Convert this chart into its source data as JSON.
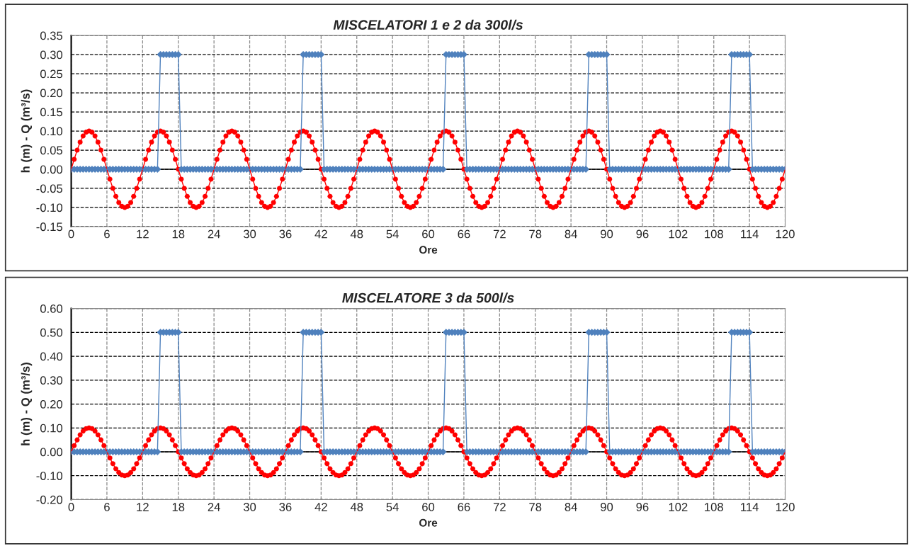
{
  "chart_data": [
    {
      "type": "line",
      "title": "MISCELATORI 1 e 2 da 300l/s",
      "xlabel": "Ore",
      "ylabel": "h (m) - Q (m³/s)",
      "xlim": [
        0,
        120
      ],
      "xticks": [
        0,
        6,
        12,
        18,
        24,
        30,
        36,
        42,
        48,
        54,
        60,
        66,
        72,
        78,
        84,
        90,
        96,
        102,
        108,
        114,
        120
      ],
      "ref_lines": [
        {
          "axis": "y",
          "value": 0,
          "color": "#000000"
        }
      ],
      "ylim": [
        -0.15,
        0.35
      ],
      "yticks": [
        {
          "value": -0.15,
          "label": "-0.15"
        },
        {
          "value": -0.1,
          "label": "-0.10"
        },
        {
          "value": -0.05,
          "label": "-0.05"
        },
        {
          "value": 0,
          "label": "0.00"
        },
        {
          "value": 0.05,
          "label": "0.05"
        },
        {
          "value": 0.1,
          "label": "0.10"
        },
        {
          "value": 0.15,
          "label": "0.15"
        },
        {
          "value": 0.2,
          "label": "0.20"
        },
        {
          "value": 0.25,
          "label": "0.25"
        },
        {
          "value": 0.3,
          "label": "0.30"
        },
        {
          "value": 0.35,
          "label": "0.35"
        }
      ],
      "grid": true,
      "line_style": "solid",
      "x": [
        0,
        0.5,
        1,
        1.5,
        2,
        2.5,
        3,
        3.5,
        4,
        4.5,
        5,
        5.5,
        6,
        6.5,
        7,
        7.5,
        8,
        8.5,
        9,
        9.5,
        10,
        10.5,
        11,
        11.5,
        12,
        12.5,
        13,
        13.5,
        14,
        14.5,
        15,
        15.5,
        16,
        16.5,
        17,
        17.5,
        18,
        18.5,
        19,
        19.5,
        20,
        20.5,
        21,
        21.5,
        22,
        22.5,
        23,
        23.5,
        24,
        24.5,
        25,
        25.5,
        26,
        26.5,
        27,
        27.5,
        28,
        28.5,
        29,
        29.5,
        30,
        30.5,
        31,
        31.5,
        32,
        32.5,
        33,
        33.5,
        34,
        34.5,
        35,
        35.5,
        36,
        36.5,
        37,
        37.5,
        38,
        38.5,
        39,
        39.5,
        40,
        40.5,
        41,
        41.5,
        42,
        42.5,
        43,
        43.5,
        44,
        44.5,
        45,
        45.5,
        46,
        46.5,
        47,
        47.5,
        48,
        48.5,
        49,
        49.5,
        50,
        50.5,
        51,
        51.5,
        52,
        52.5,
        53,
        53.5,
        54,
        54.5,
        55,
        55.5,
        56,
        56.5,
        57,
        57.5,
        58,
        58.5,
        59,
        59.5,
        60,
        60.5,
        61,
        61.5,
        62,
        62.5,
        63,
        63.5,
        64,
        64.5,
        65,
        65.5,
        66,
        66.5,
        67,
        67.5,
        68,
        68.5,
        69,
        69.5,
        70,
        70.5,
        71,
        71.5,
        72,
        72.5,
        73,
        73.5,
        74,
        74.5,
        75,
        75.5,
        76,
        76.5,
        77,
        77.5,
        78,
        78.5,
        79,
        79.5,
        80,
        80.5,
        81,
        81.5,
        82,
        82.5,
        83,
        83.5,
        84,
        84.5,
        85,
        85.5,
        86,
        86.5,
        87,
        87.5,
        88,
        88.5,
        89,
        89.5,
        90,
        90.5,
        91,
        91.5,
        92,
        92.5,
        93,
        93.5,
        94,
        94.5,
        95,
        95.5,
        96,
        96.5,
        97,
        97.5,
        98,
        98.5,
        99,
        99.5,
        100,
        100.5,
        101,
        101.5,
        102,
        102.5,
        103,
        103.5,
        104,
        104.5,
        105,
        105.5,
        106,
        106.5,
        107,
        107.5,
        108,
        108.5,
        109,
        109.5,
        110,
        110.5,
        111,
        111.5,
        112,
        112.5,
        113,
        113.5,
        114,
        114.5,
        115,
        115.5,
        116,
        116.5,
        117,
        117.5,
        118,
        118.5,
        119,
        119.5,
        120
      ],
      "series": [
        {
          "color": "#ff0000",
          "marker": "circle",
          "values": [
            0,
            0.026,
            0.05,
            0.071,
            0.087,
            0.097,
            0.1,
            0.097,
            0.087,
            0.071,
            0.05,
            0.026,
            0,
            -0.026,
            -0.05,
            -0.071,
            -0.087,
            -0.097,
            -0.1,
            -0.097,
            -0.087,
            -0.071,
            -0.05,
            -0.026,
            0,
            0.026,
            0.05,
            0.071,
            0.087,
            0.097,
            0.1,
            0.097,
            0.087,
            0.071,
            0.05,
            0.026,
            0,
            -0.026,
            -0.05,
            -0.071,
            -0.087,
            -0.097,
            -0.1,
            -0.097,
            -0.087,
            -0.071,
            -0.05,
            -0.026,
            0,
            0.026,
            0.05,
            0.071,
            0.087,
            0.097,
            0.1,
            0.097,
            0.087,
            0.071,
            0.05,
            0.026,
            0,
            -0.026,
            -0.05,
            -0.071,
            -0.087,
            -0.097,
            -0.1,
            -0.097,
            -0.087,
            -0.071,
            -0.05,
            -0.026,
            0,
            0.026,
            0.05,
            0.071,
            0.087,
            0.097,
            0.1,
            0.097,
            0.087,
            0.071,
            0.05,
            0.026,
            0,
            -0.026,
            -0.05,
            -0.071,
            -0.087,
            -0.097,
            -0.1,
            -0.097,
            -0.087,
            -0.071,
            -0.05,
            -0.026,
            0,
            0.026,
            0.05,
            0.071,
            0.087,
            0.097,
            0.1,
            0.097,
            0.087,
            0.071,
            0.05,
            0.026,
            0,
            -0.026,
            -0.05,
            -0.071,
            -0.087,
            -0.097,
            -0.1,
            -0.097,
            -0.087,
            -0.071,
            -0.05,
            -0.026,
            0,
            0.026,
            0.05,
            0.071,
            0.087,
            0.097,
            0.1,
            0.097,
            0.087,
            0.071,
            0.05,
            0.026,
            0,
            -0.026,
            -0.05,
            -0.071,
            -0.087,
            -0.097,
            -0.1,
            -0.097,
            -0.087,
            -0.071,
            -0.05,
            -0.026,
            0,
            0.026,
            0.05,
            0.071,
            0.087,
            0.097,
            0.1,
            0.097,
            0.087,
            0.071,
            0.05,
            0.026,
            0,
            -0.026,
            -0.05,
            -0.071,
            -0.087,
            -0.097,
            -0.1,
            -0.097,
            -0.087,
            -0.071,
            -0.05,
            -0.026,
            0,
            0.026,
            0.05,
            0.071,
            0.087,
            0.097,
            0.1,
            0.097,
            0.087,
            0.071,
            0.05,
            0.026,
            0,
            -0.026,
            -0.05,
            -0.071,
            -0.087,
            -0.097,
            -0.1,
            -0.097,
            -0.087,
            -0.071,
            -0.05,
            -0.026,
            0,
            0.026,
            0.05,
            0.071,
            0.087,
            0.097,
            0.1,
            0.097,
            0.087,
            0.071,
            0.05,
            0.026,
            0,
            -0.026,
            -0.05,
            -0.071,
            -0.087,
            -0.097,
            -0.1,
            -0.097,
            -0.087,
            -0.071,
            -0.05,
            -0.026,
            0,
            0.026,
            0.05,
            0.071,
            0.087,
            0.097,
            0.1,
            0.097,
            0.087,
            0.071,
            0.05,
            0.026,
            0,
            -0.026,
            -0.05,
            -0.071,
            -0.087,
            -0.097,
            -0.1,
            -0.097,
            -0.087,
            -0.071,
            -0.05,
            -0.026,
            0
          ]
        },
        {
          "color": "#4f81bd",
          "marker": "diamond",
          "values": [
            0,
            0,
            0,
            0,
            0,
            0,
            0,
            0,
            0,
            0,
            0,
            0,
            0,
            0,
            0,
            0,
            0,
            0,
            0,
            0,
            0,
            0,
            0,
            0,
            0,
            0,
            0,
            0,
            0,
            0,
            0.3,
            0.3,
            0.3,
            0.3,
            0.3,
            0.3,
            0.3,
            0,
            0,
            0,
            0,
            0,
            0,
            0,
            0,
            0,
            0,
            0,
            0,
            0,
            0,
            0,
            0,
            0,
            0,
            0,
            0,
            0,
            0,
            0,
            0,
            0,
            0,
            0,
            0,
            0,
            0,
            0,
            0,
            0,
            0,
            0,
            0,
            0,
            0,
            0,
            0,
            0,
            0.3,
            0.3,
            0.3,
            0.3,
            0.3,
            0.3,
            0.3,
            0,
            0,
            0,
            0,
            0,
            0,
            0,
            0,
            0,
            0,
            0,
            0,
            0,
            0,
            0,
            0,
            0,
            0,
            0,
            0,
            0,
            0,
            0,
            0,
            0,
            0,
            0,
            0,
            0,
            0,
            0,
            0,
            0,
            0,
            0,
            0,
            0,
            0,
            0,
            0,
            0,
            0.3,
            0.3,
            0.3,
            0.3,
            0.3,
            0.3,
            0.3,
            0,
            0,
            0,
            0,
            0,
            0,
            0,
            0,
            0,
            0,
            0,
            0,
            0,
            0,
            0,
            0,
            0,
            0,
            0,
            0,
            0,
            0,
            0,
            0,
            0,
            0,
            0,
            0,
            0,
            0,
            0,
            0,
            0,
            0,
            0,
            0,
            0,
            0,
            0,
            0,
            0,
            0.3,
            0.3,
            0.3,
            0.3,
            0.3,
            0.3,
            0.3,
            0,
            0,
            0,
            0,
            0,
            0,
            0,
            0,
            0,
            0,
            0,
            0,
            0,
            0,
            0,
            0,
            0,
            0,
            0,
            0,
            0,
            0,
            0,
            0,
            0,
            0,
            0,
            0,
            0,
            0,
            0,
            0,
            0,
            0,
            0,
            0,
            0,
            0,
            0,
            0,
            0,
            0.3,
            0.3,
            0.3,
            0.3,
            0.3,
            0.3,
            0.3,
            0,
            0,
            0,
            0,
            0,
            0,
            0,
            0,
            0,
            0,
            0,
            0
          ]
        }
      ]
    },
    {
      "type": "line",
      "title": "MISCELATORE 3 da 500l/s",
      "xlabel": "Ore",
      "ylabel": "h (m) - Q (m³/s)",
      "xlim": [
        0,
        120
      ],
      "xticks": [
        0,
        6,
        12,
        18,
        24,
        30,
        36,
        42,
        48,
        54,
        60,
        66,
        72,
        78,
        84,
        90,
        96,
        102,
        108,
        114,
        120
      ],
      "ref_lines": [
        {
          "axis": "y",
          "value": 0,
          "color": "#000000"
        }
      ],
      "ylim": [
        -0.2,
        0.6
      ],
      "yticks": [
        {
          "value": -0.2,
          "label": "-0.20"
        },
        {
          "value": -0.1,
          "label": "-0.10"
        },
        {
          "value": 0,
          "label": "0.00"
        },
        {
          "value": 0.1,
          "label": "0.10"
        },
        {
          "value": 0.2,
          "label": "0.20"
        },
        {
          "value": 0.3,
          "label": "0.30"
        },
        {
          "value": 0.4,
          "label": "0.40"
        },
        {
          "value": 0.5,
          "label": "0.50"
        },
        {
          "value": 0.6,
          "label": "0.60"
        }
      ],
      "grid": true,
      "line_style": "solid",
      "x": [
        0,
        0.5,
        1,
        1.5,
        2,
        2.5,
        3,
        3.5,
        4,
        4.5,
        5,
        5.5,
        6,
        6.5,
        7,
        7.5,
        8,
        8.5,
        9,
        9.5,
        10,
        10.5,
        11,
        11.5,
        12,
        12.5,
        13,
        13.5,
        14,
        14.5,
        15,
        15.5,
        16,
        16.5,
        17,
        17.5,
        18,
        18.5,
        19,
        19.5,
        20,
        20.5,
        21,
        21.5,
        22,
        22.5,
        23,
        23.5,
        24,
        24.5,
        25,
        25.5,
        26,
        26.5,
        27,
        27.5,
        28,
        28.5,
        29,
        29.5,
        30,
        30.5,
        31,
        31.5,
        32,
        32.5,
        33,
        33.5,
        34,
        34.5,
        35,
        35.5,
        36,
        36.5,
        37,
        37.5,
        38,
        38.5,
        39,
        39.5,
        40,
        40.5,
        41,
        41.5,
        42,
        42.5,
        43,
        43.5,
        44,
        44.5,
        45,
        45.5,
        46,
        46.5,
        47,
        47.5,
        48,
        48.5,
        49,
        49.5,
        50,
        50.5,
        51,
        51.5,
        52,
        52.5,
        53,
        53.5,
        54,
        54.5,
        55,
        55.5,
        56,
        56.5,
        57,
        57.5,
        58,
        58.5,
        59,
        59.5,
        60,
        60.5,
        61,
        61.5,
        62,
        62.5,
        63,
        63.5,
        64,
        64.5,
        65,
        65.5,
        66,
        66.5,
        67,
        67.5,
        68,
        68.5,
        69,
        69.5,
        70,
        70.5,
        71,
        71.5,
        72,
        72.5,
        73,
        73.5,
        74,
        74.5,
        75,
        75.5,
        76,
        76.5,
        77,
        77.5,
        78,
        78.5,
        79,
        79.5,
        80,
        80.5,
        81,
        81.5,
        82,
        82.5,
        83,
        83.5,
        84,
        84.5,
        85,
        85.5,
        86,
        86.5,
        87,
        87.5,
        88,
        88.5,
        89,
        89.5,
        90,
        90.5,
        91,
        91.5,
        92,
        92.5,
        93,
        93.5,
        94,
        94.5,
        95,
        95.5,
        96,
        96.5,
        97,
        97.5,
        98,
        98.5,
        99,
        99.5,
        100,
        100.5,
        101,
        101.5,
        102,
        102.5,
        103,
        103.5,
        104,
        104.5,
        105,
        105.5,
        106,
        106.5,
        107,
        107.5,
        108,
        108.5,
        109,
        109.5,
        110,
        110.5,
        111,
        111.5,
        112,
        112.5,
        113,
        113.5,
        114,
        114.5,
        115,
        115.5,
        116,
        116.5,
        117,
        117.5,
        118,
        118.5,
        119,
        119.5,
        120
      ],
      "series": [
        {
          "color": "#ff0000",
          "marker": "circle",
          "values": [
            0,
            0.026,
            0.05,
            0.071,
            0.087,
            0.097,
            0.1,
            0.097,
            0.087,
            0.071,
            0.05,
            0.026,
            0,
            -0.026,
            -0.05,
            -0.071,
            -0.087,
            -0.097,
            -0.1,
            -0.097,
            -0.087,
            -0.071,
            -0.05,
            -0.026,
            0,
            0.026,
            0.05,
            0.071,
            0.087,
            0.097,
            0.1,
            0.097,
            0.087,
            0.071,
            0.05,
            0.026,
            0,
            -0.026,
            -0.05,
            -0.071,
            -0.087,
            -0.097,
            -0.1,
            -0.097,
            -0.087,
            -0.071,
            -0.05,
            -0.026,
            0,
            0.026,
            0.05,
            0.071,
            0.087,
            0.097,
            0.1,
            0.097,
            0.087,
            0.071,
            0.05,
            0.026,
            0,
            -0.026,
            -0.05,
            -0.071,
            -0.087,
            -0.097,
            -0.1,
            -0.097,
            -0.087,
            -0.071,
            -0.05,
            -0.026,
            0,
            0.026,
            0.05,
            0.071,
            0.087,
            0.097,
            0.1,
            0.097,
            0.087,
            0.071,
            0.05,
            0.026,
            0,
            -0.026,
            -0.05,
            -0.071,
            -0.087,
            -0.097,
            -0.1,
            -0.097,
            -0.087,
            -0.071,
            -0.05,
            -0.026,
            0,
            0.026,
            0.05,
            0.071,
            0.087,
            0.097,
            0.1,
            0.097,
            0.087,
            0.071,
            0.05,
            0.026,
            0,
            -0.026,
            -0.05,
            -0.071,
            -0.087,
            -0.097,
            -0.1,
            -0.097,
            -0.087,
            -0.071,
            -0.05,
            -0.026,
            0,
            0.026,
            0.05,
            0.071,
            0.087,
            0.097,
            0.1,
            0.097,
            0.087,
            0.071,
            0.05,
            0.026,
            0,
            -0.026,
            -0.05,
            -0.071,
            -0.087,
            -0.097,
            -0.1,
            -0.097,
            -0.087,
            -0.071,
            -0.05,
            -0.026,
            0,
            0.026,
            0.05,
            0.071,
            0.087,
            0.097,
            0.1,
            0.097,
            0.087,
            0.071,
            0.05,
            0.026,
            0,
            -0.026,
            -0.05,
            -0.071,
            -0.087,
            -0.097,
            -0.1,
            -0.097,
            -0.087,
            -0.071,
            -0.05,
            -0.026,
            0,
            0.026,
            0.05,
            0.071,
            0.087,
            0.097,
            0.1,
            0.097,
            0.087,
            0.071,
            0.05,
            0.026,
            0,
            -0.026,
            -0.05,
            -0.071,
            -0.087,
            -0.097,
            -0.1,
            -0.097,
            -0.087,
            -0.071,
            -0.05,
            -0.026,
            0,
            0.026,
            0.05,
            0.071,
            0.087,
            0.097,
            0.1,
            0.097,
            0.087,
            0.071,
            0.05,
            0.026,
            0,
            -0.026,
            -0.05,
            -0.071,
            -0.087,
            -0.097,
            -0.1,
            -0.097,
            -0.087,
            -0.071,
            -0.05,
            -0.026,
            0,
            0.026,
            0.05,
            0.071,
            0.087,
            0.097,
            0.1,
            0.097,
            0.087,
            0.071,
            0.05,
            0.026,
            0,
            -0.026,
            -0.05,
            -0.071,
            -0.087,
            -0.097,
            -0.1,
            -0.097,
            -0.087,
            -0.071,
            -0.05,
            -0.026,
            0
          ]
        },
        {
          "color": "#4f81bd",
          "marker": "diamond",
          "values": [
            0,
            0,
            0,
            0,
            0,
            0,
            0,
            0,
            0,
            0,
            0,
            0,
            0,
            0,
            0,
            0,
            0,
            0,
            0,
            0,
            0,
            0,
            0,
            0,
            0,
            0,
            0,
            0,
            0,
            0,
            0.5,
            0.5,
            0.5,
            0.5,
            0.5,
            0.5,
            0.5,
            0,
            0,
            0,
            0,
            0,
            0,
            0,
            0,
            0,
            0,
            0,
            0,
            0,
            0,
            0,
            0,
            0,
            0,
            0,
            0,
            0,
            0,
            0,
            0,
            0,
            0,
            0,
            0,
            0,
            0,
            0,
            0,
            0,
            0,
            0,
            0,
            0,
            0,
            0,
            0,
            0,
            0.5,
            0.5,
            0.5,
            0.5,
            0.5,
            0.5,
            0.5,
            0,
            0,
            0,
            0,
            0,
            0,
            0,
            0,
            0,
            0,
            0,
            0,
            0,
            0,
            0,
            0,
            0,
            0,
            0,
            0,
            0,
            0,
            0,
            0,
            0,
            0,
            0,
            0,
            0,
            0,
            0,
            0,
            0,
            0,
            0,
            0,
            0,
            0,
            0,
            0,
            0,
            0.5,
            0.5,
            0.5,
            0.5,
            0.5,
            0.5,
            0.5,
            0,
            0,
            0,
            0,
            0,
            0,
            0,
            0,
            0,
            0,
            0,
            0,
            0,
            0,
            0,
            0,
            0,
            0,
            0,
            0,
            0,
            0,
            0,
            0,
            0,
            0,
            0,
            0,
            0,
            0,
            0,
            0,
            0,
            0,
            0,
            0,
            0,
            0,
            0,
            0,
            0,
            0.5,
            0.5,
            0.5,
            0.5,
            0.5,
            0.5,
            0.5,
            0,
            0,
            0,
            0,
            0,
            0,
            0,
            0,
            0,
            0,
            0,
            0,
            0,
            0,
            0,
            0,
            0,
            0,
            0,
            0,
            0,
            0,
            0,
            0,
            0,
            0,
            0,
            0,
            0,
            0,
            0,
            0,
            0,
            0,
            0,
            0,
            0,
            0,
            0,
            0,
            0,
            0.5,
            0.5,
            0.5,
            0.5,
            0.5,
            0.5,
            0.5,
            0,
            0,
            0,
            0,
            0,
            0,
            0,
            0,
            0,
            0,
            0,
            0
          ]
        }
      ]
    }
  ]
}
